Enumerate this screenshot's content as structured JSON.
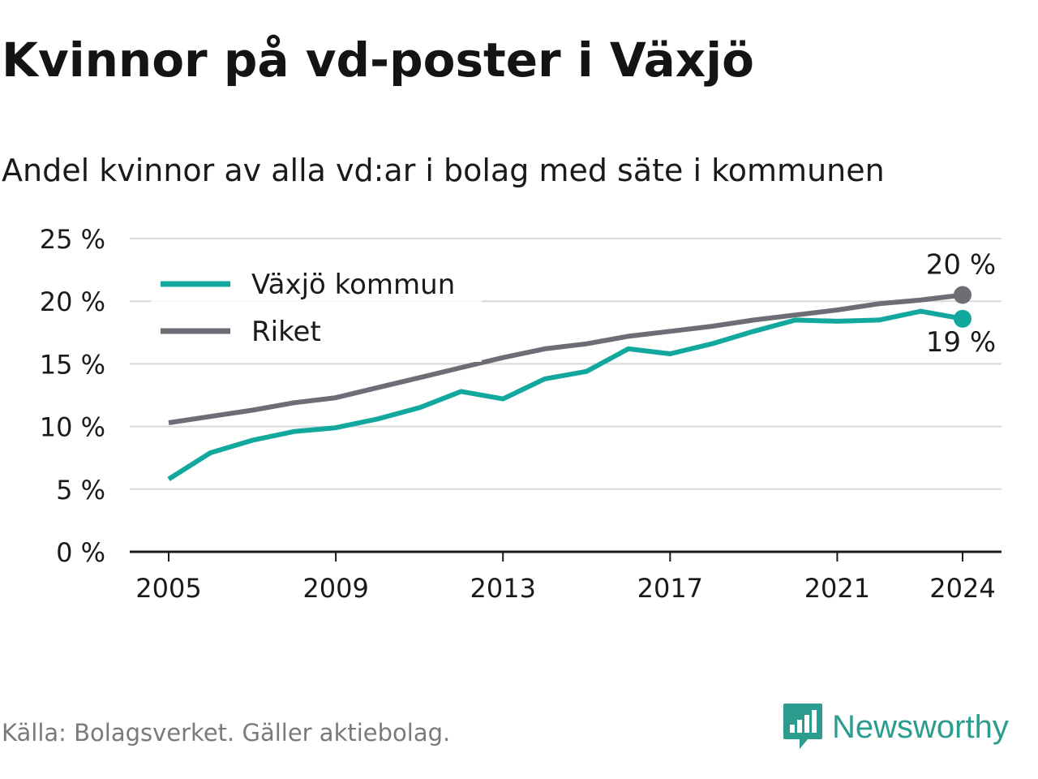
{
  "title": "Kvinnor på vd-poster i Växjö",
  "subtitle": "Andel kvinnor av alla vd:ar i bolag med säte i kommunen",
  "source": "Källa: Bolagsverket. Gäller aktiebolag.",
  "brand": {
    "name": "Newsworthy",
    "logo_icon": "bar-chart-speech-bubble-icon",
    "color": "#2a9d8f"
  },
  "chart_data": {
    "type": "line",
    "title": "",
    "xlabel": "",
    "ylabel": "",
    "x": [
      2005,
      2006,
      2007,
      2008,
      2009,
      2010,
      2011,
      2012,
      2013,
      2014,
      2015,
      2016,
      2017,
      2018,
      2019,
      2020,
      2021,
      2022,
      2023,
      2024
    ],
    "xticks": [
      "2005",
      "2009",
      "2013",
      "2017",
      "2021",
      "2024"
    ],
    "xtick_values": [
      2005,
      2009,
      2013,
      2017,
      2021,
      2024
    ],
    "yticks": [
      "0 %",
      "5 %",
      "10 %",
      "15 %",
      "20 %",
      "25 %"
    ],
    "ytick_values": [
      0,
      5,
      10,
      15,
      20,
      25
    ],
    "ylim": [
      0,
      25
    ],
    "grid": true,
    "legend_position": "top-left",
    "series": [
      {
        "name": "Växjö kommun",
        "color": "#13a89e",
        "values": [
          5.8,
          7.9,
          8.9,
          9.6,
          9.9,
          10.6,
          11.5,
          12.8,
          12.2,
          13.8,
          14.4,
          16.2,
          15.8,
          16.6,
          17.6,
          18.5,
          18.4,
          18.5,
          19.2,
          18.6
        ],
        "end_label": "19 %"
      },
      {
        "name": "Riket",
        "color": "#6e6d75",
        "values": [
          10.3,
          10.8,
          11.3,
          11.9,
          12.3,
          13.1,
          13.9,
          14.7,
          15.5,
          16.2,
          16.6,
          17.2,
          17.6,
          18.0,
          18.5,
          18.9,
          19.3,
          19.8,
          20.1,
          20.5
        ],
        "end_label": "20 %"
      }
    ],
    "colors": {
      "grid": "#d9d9d9",
      "axis": "#1a1a1a",
      "legend_bg": "#ffffff"
    }
  }
}
